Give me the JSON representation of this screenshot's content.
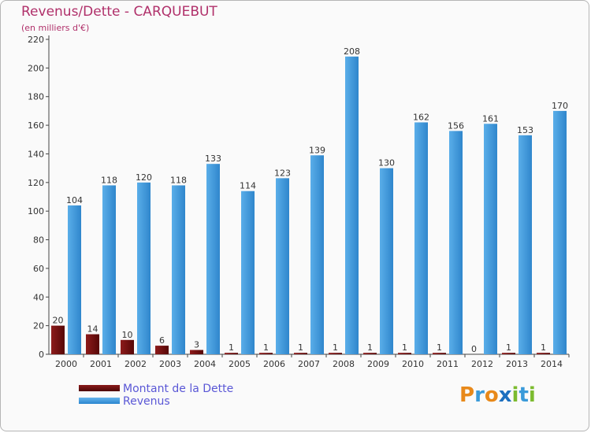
{
  "title": "Revenus/Dette - CARQUEBUT",
  "subtitle": "(en milliers d'€)",
  "legend": {
    "debt": "Montant de la Dette",
    "revenue": "Revenus"
  },
  "logo": {
    "letters": [
      "P",
      "r",
      "o",
      "x",
      "i",
      "t",
      "i"
    ],
    "colors": [
      "#e8891a",
      "#3a9ad9",
      "#e8891a",
      "#1c6fbf",
      "#7cbb2f",
      "#3a9ad9",
      "#7cbb2f"
    ]
  },
  "colors": {
    "debt": "#6e0f0f",
    "revenue": "#3d95dc",
    "title": "#b0306a",
    "legend_text": "#5a57d6"
  },
  "chart_data": {
    "type": "bar",
    "title": "Revenus/Dette - CARQUEBUT",
    "ylabel": "(en milliers d'€)",
    "xlabel": "",
    "categories": [
      "2000",
      "2001",
      "2002",
      "2003",
      "2004",
      "2005",
      "2006",
      "2007",
      "2008",
      "2009",
      "2010",
      "2011",
      "2012",
      "2013",
      "2014"
    ],
    "series": [
      {
        "name": "Montant de la Dette",
        "values": [
          20,
          14,
          10,
          6,
          3,
          1,
          1,
          1,
          1,
          1,
          1,
          1,
          0,
          1,
          1
        ]
      },
      {
        "name": "Revenus",
        "values": [
          104,
          118,
          120,
          118,
          133,
          114,
          123,
          139,
          208,
          130,
          162,
          156,
          161,
          153,
          170
        ]
      }
    ],
    "ylim": [
      0,
      220
    ],
    "yticks": [
      0,
      20,
      40,
      60,
      80,
      100,
      120,
      140,
      160,
      180,
      200,
      220
    ],
    "grid": false,
    "legend_position": "bottom-left"
  }
}
